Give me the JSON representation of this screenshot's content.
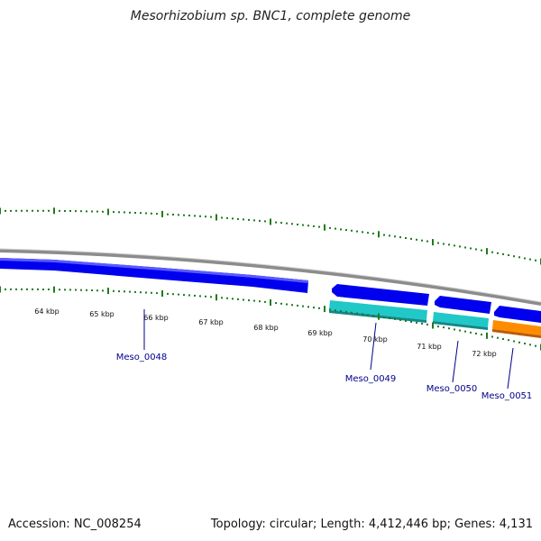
{
  "title": "Mesorhizobium sp. BNC1, complete genome",
  "footer": {
    "accession": "Accession: NC_008254",
    "summary": "Topology: circular; Length: 4,412,446 bp; Genes: 4,131"
  },
  "colors": {
    "backbone": "#8c8c8c",
    "cds": "#0000ee",
    "cds_light": "#5a5aff",
    "rna": "#20c8c8",
    "rna_dark": "#118888",
    "orange": "#ff8c00",
    "orange_dark": "#b85c00",
    "tick": "#1f7a1f",
    "label": "#00008b"
  },
  "scale": {
    "ticks": [
      {
        "label": "64 kbp"
      },
      {
        "label": "65 kbp"
      },
      {
        "label": "66 kbp"
      },
      {
        "label": "67 kbp"
      },
      {
        "label": "68 kbp"
      },
      {
        "label": "69 kbp"
      },
      {
        "label": "70 kbp"
      },
      {
        "label": "71 kbp"
      },
      {
        "label": "72 kbp"
      }
    ]
  },
  "genes": [
    {
      "label": "Meso_0048"
    },
    {
      "label": "Meso_0049"
    },
    {
      "label": "Meso_0050"
    },
    {
      "label": "Meso_0051"
    }
  ]
}
